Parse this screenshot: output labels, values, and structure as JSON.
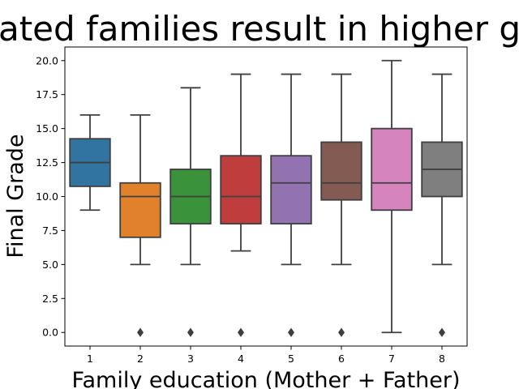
{
  "chart_data": {
    "type": "box",
    "title": "ated families result in higher g",
    "xlabel": "Family education (Mother + Father)",
    "ylabel": "Final Grade",
    "ylim": [
      -1,
      21
    ],
    "yticks": [
      "0.0",
      "2.5",
      "5.0",
      "7.5",
      "10.0",
      "12.5",
      "15.0",
      "17.5",
      "20.0"
    ],
    "ytick_values": [
      0,
      2.5,
      5,
      7.5,
      10,
      12.5,
      15,
      17.5,
      20
    ],
    "grid": false,
    "categories": [
      "1",
      "2",
      "3",
      "4",
      "5",
      "6",
      "7",
      "8"
    ],
    "boxes": [
      {
        "category": "1",
        "whisker_low": 9,
        "q1": 10.75,
        "median": 12.5,
        "q3": 14.25,
        "whisker_high": 16,
        "outliers": [],
        "color": "#3274a1"
      },
      {
        "category": "2",
        "whisker_low": 5,
        "q1": 7,
        "median": 10,
        "q3": 11,
        "whisker_high": 16,
        "outliers": [
          0
        ],
        "color": "#e1812c"
      },
      {
        "category": "3",
        "whisker_low": 5,
        "q1": 8,
        "median": 10,
        "q3": 12,
        "whisker_high": 18,
        "outliers": [
          0
        ],
        "color": "#3a923a"
      },
      {
        "category": "4",
        "whisker_low": 6,
        "q1": 8,
        "median": 10,
        "q3": 13,
        "whisker_high": 19,
        "outliers": [
          0
        ],
        "color": "#c03d3e"
      },
      {
        "category": "5",
        "whisker_low": 5,
        "q1": 8,
        "median": 11,
        "q3": 13,
        "whisker_high": 19,
        "outliers": [
          0
        ],
        "color": "#9372b2"
      },
      {
        "category": "6",
        "whisker_low": 5,
        "q1": 9.75,
        "median": 11,
        "q3": 14,
        "whisker_high": 19,
        "outliers": [
          0
        ],
        "color": "#845b53"
      },
      {
        "category": "7",
        "whisker_low": 0,
        "q1": 9,
        "median": 11,
        "q3": 15,
        "whisker_high": 20,
        "outliers": [],
        "color": "#d684bd"
      },
      {
        "category": "8",
        "whisker_low": 5,
        "q1": 10,
        "median": 12,
        "q3": 14,
        "whisker_high": 19,
        "outliers": [
          0
        ],
        "color": "#7f7f7f"
      }
    ],
    "line_color": "#3f3f3f"
  }
}
